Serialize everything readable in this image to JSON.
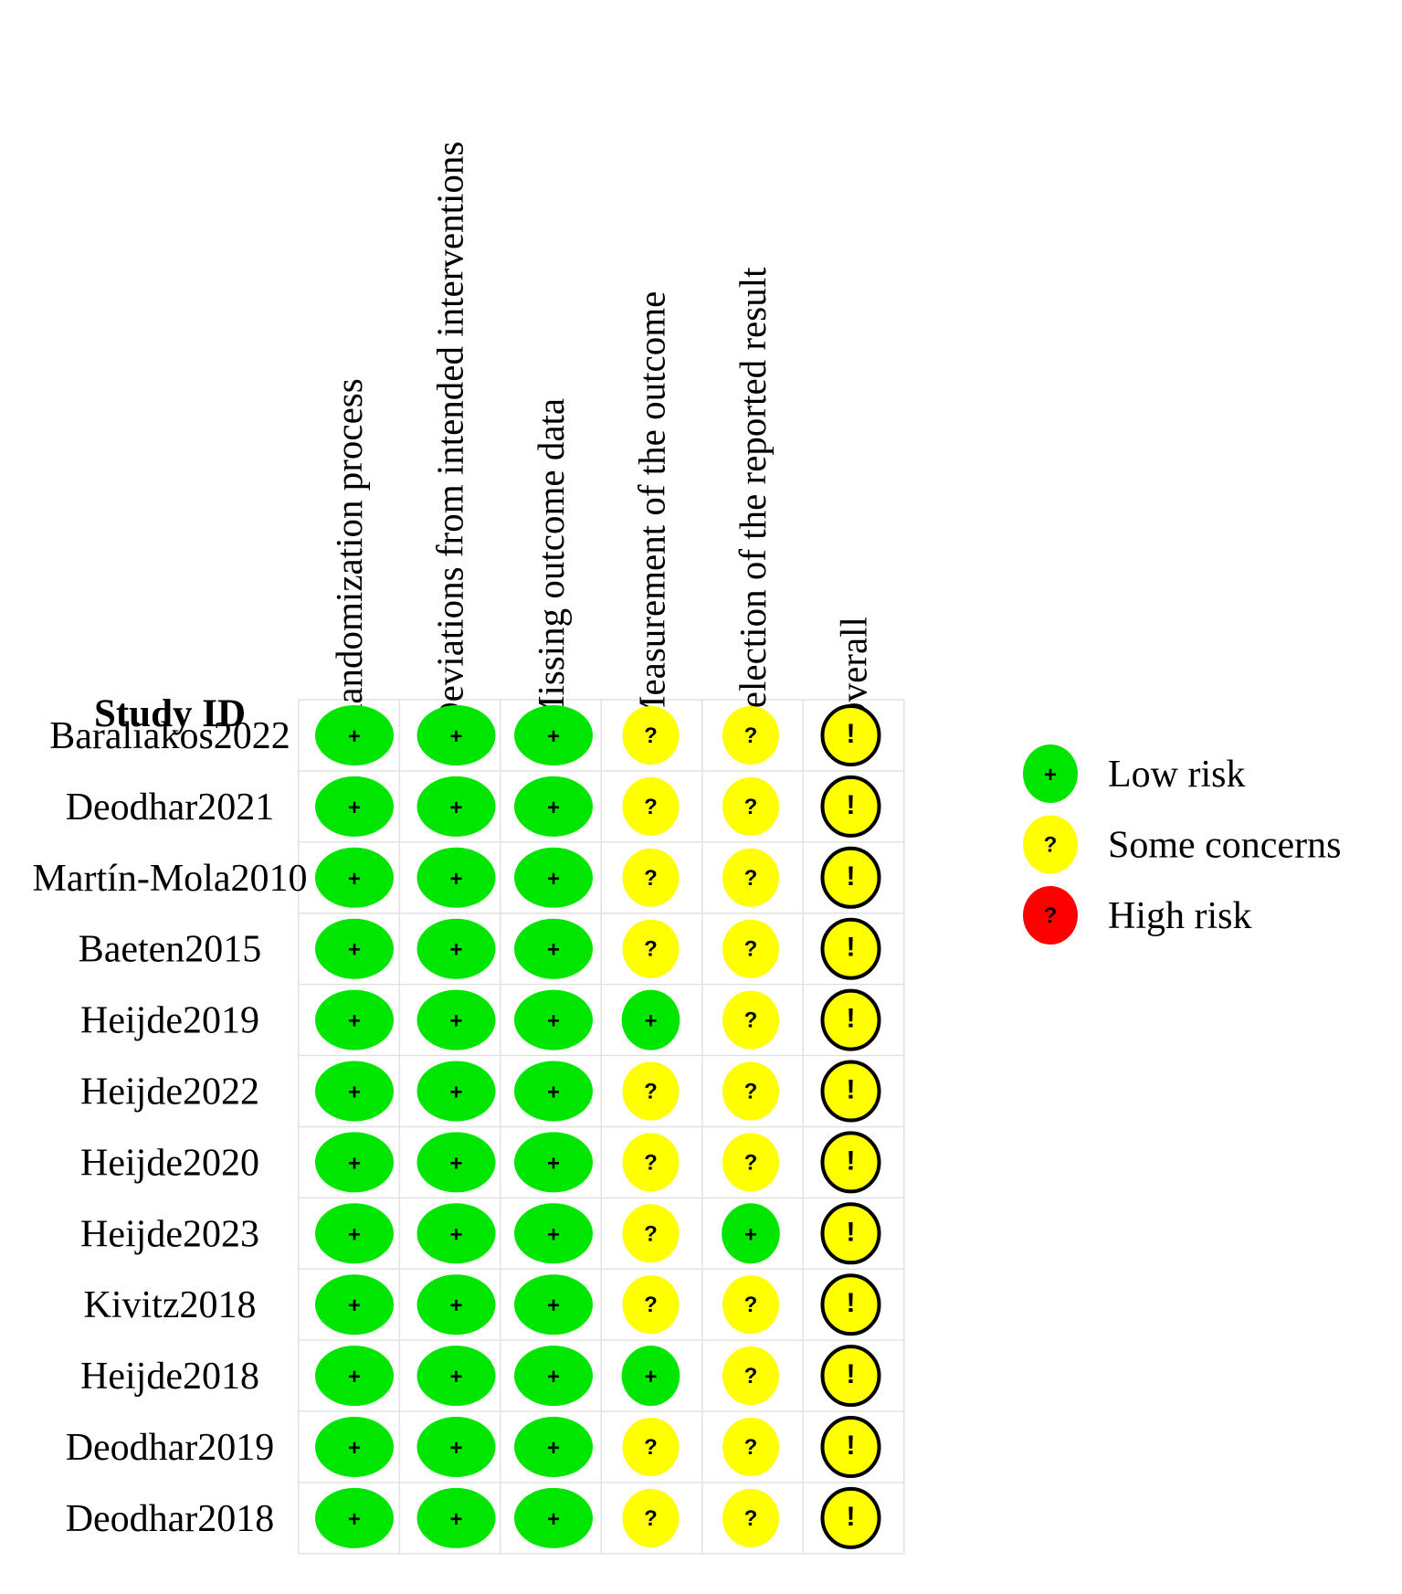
{
  "chart_data": {
    "type": "table",
    "study_header": "Study ID",
    "domains": [
      "Randomization process",
      "Deviations from intended interventions",
      "Missing outcome data",
      "Measurement of the outcome",
      "Selection of the reported result",
      "Overall"
    ],
    "studies": [
      {
        "id": "Baraliakos2022",
        "ratings": [
          "low",
          "low",
          "low",
          "some",
          "some",
          "overall_some"
        ]
      },
      {
        "id": "Deodhar2021",
        "ratings": [
          "low",
          "low",
          "low",
          "some",
          "some",
          "overall_some"
        ]
      },
      {
        "id": "Martín-Mola2010",
        "ratings": [
          "low",
          "low",
          "low",
          "some",
          "some",
          "overall_some"
        ]
      },
      {
        "id": "Baeten2015",
        "ratings": [
          "low",
          "low",
          "low",
          "some",
          "some",
          "overall_some"
        ]
      },
      {
        "id": "Heijde2019",
        "ratings": [
          "low",
          "low",
          "low",
          "low",
          "some",
          "overall_some"
        ]
      },
      {
        "id": "Heijde2022",
        "ratings": [
          "low",
          "low",
          "low",
          "some",
          "some",
          "overall_some"
        ]
      },
      {
        "id": "Heijde2020",
        "ratings": [
          "low",
          "low",
          "low",
          "some",
          "some",
          "overall_some"
        ]
      },
      {
        "id": "Heijde2023",
        "ratings": [
          "low",
          "low",
          "low",
          "some",
          "low",
          "overall_some"
        ]
      },
      {
        "id": "Kivitz2018",
        "ratings": [
          "low",
          "low",
          "low",
          "some",
          "some",
          "overall_some"
        ]
      },
      {
        "id": "Heijde2018",
        "ratings": [
          "low",
          "low",
          "low",
          "low",
          "some",
          "overall_some"
        ]
      },
      {
        "id": "Deodhar2019",
        "ratings": [
          "low",
          "low",
          "low",
          "some",
          "some",
          "overall_some"
        ]
      },
      {
        "id": "Deodhar2018",
        "ratings": [
          "low",
          "low",
          "low",
          "some",
          "some",
          "overall_some"
        ]
      }
    ],
    "symbols": {
      "low": {
        "symbol": "+",
        "color": "#00e600",
        "outline": false
      },
      "some": {
        "symbol": "?",
        "color": "#ffff00",
        "outline": false
      },
      "high": {
        "symbol": "?",
        "color": "#ff0000",
        "outline": false
      },
      "overall_some": {
        "symbol": "!",
        "color": "#ffff00",
        "outline": true
      }
    },
    "legend": {
      "placement": "right",
      "items": [
        {
          "key": "low",
          "label": "Low risk"
        },
        {
          "key": "some",
          "label": "Some concerns"
        },
        {
          "key": "high",
          "label": "High risk"
        }
      ]
    },
    "grid": true
  }
}
